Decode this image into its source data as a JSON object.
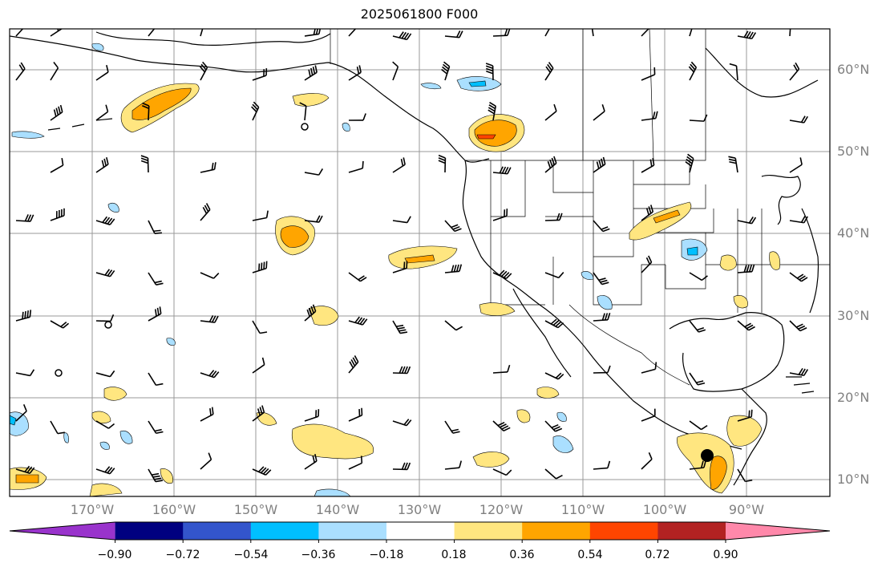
{
  "title": "2025061800 F000",
  "lat_labels": [
    "60°N",
    "50°N",
    "40°N",
    "30°N",
    "20°N",
    "10°N"
  ],
  "lon_labels": [
    "170°W",
    "160°W",
    "150°W",
    "140°W",
    "130°W",
    "120°W",
    "110°W",
    "100°W",
    "90°W"
  ],
  "colorbar": {
    "ticks": [
      "−0.90",
      "−0.72",
      "−0.54",
      "−0.36",
      "−0.18",
      "0.18",
      "0.36",
      "0.54",
      "0.72",
      "0.90"
    ],
    "colors": [
      "#9933cc",
      "#000080",
      "#3355cc",
      "#00bfff",
      "#aadfff",
      "#ffffff",
      "#ffe680",
      "#ffa500",
      "#ff4500",
      "#b22222",
      "#ff88aa"
    ]
  },
  "colors": {
    "land_outline": "#000000",
    "grid": "#999999",
    "label": "#808080"
  }
}
